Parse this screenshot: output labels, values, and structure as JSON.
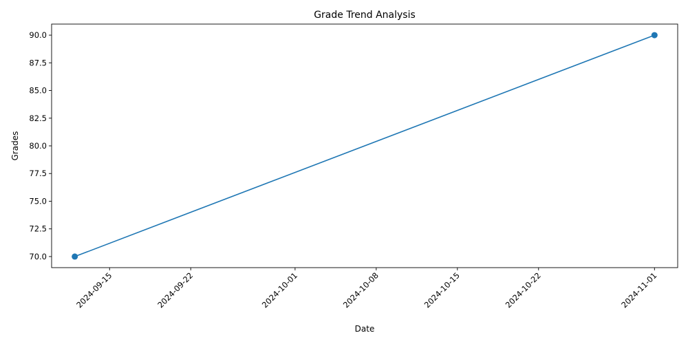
{
  "chart_data": {
    "type": "line",
    "title": "Grade Trend Analysis",
    "xlabel": "Date",
    "ylabel": "Grades",
    "x_ticks": [
      "2024-09-15",
      "2024-09-22",
      "2024-10-01",
      "2024-10-08",
      "2024-10-15",
      "2024-10-22",
      "2024-11-01"
    ],
    "y_ticks": [
      "70.0",
      "72.5",
      "75.0",
      "77.5",
      "80.0",
      "82.5",
      "85.0",
      "87.5",
      "90.0"
    ],
    "xlim": [
      "2024-09-10",
      "2024-11-03"
    ],
    "ylim": [
      69,
      91
    ],
    "grid": false,
    "series": [
      {
        "color": "#1f77b4",
        "marker": "circle",
        "points": [
          {
            "x": "2024-09-12",
            "y": 70.0
          },
          {
            "x": "2024-11-01",
            "y": 90.0
          }
        ]
      }
    ]
  }
}
